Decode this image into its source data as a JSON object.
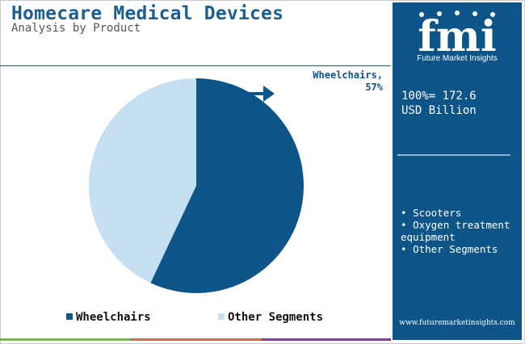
{
  "colors": {
    "primary": "#0d5489",
    "secondary": "#c5dff0",
    "title": "#1d5e8e",
    "strip": [
      "#7ab648",
      "#e36b22",
      "#7f3f98"
    ]
  },
  "header": {
    "title": "Homecare Medical Devices",
    "subtitle": "Analysis by Product"
  },
  "chart_data": {
    "type": "pie",
    "title": "Homecare Medical Devices",
    "subtitle": "Analysis by Product",
    "slices": [
      {
        "name": "Wheelchairs",
        "value": 57,
        "color": "#0d5489"
      },
      {
        "name": "Other Segments",
        "value": 43,
        "color": "#c5dff0"
      }
    ],
    "callout": {
      "line1": "Wheelchairs,",
      "line2": "57%"
    },
    "legend": [
      "Wheelchairs",
      "Other Segments"
    ]
  },
  "panel": {
    "logo_text": "fmi",
    "logo_caption": "Future Market Insights",
    "total_line1": "100%= 172.6",
    "total_line2": "USD Billion",
    "other_items": [
      "Scooters",
      "Oxygen treatment equipment",
      "Other Segments"
    ],
    "website": "www.futuremarketinsights.com"
  }
}
